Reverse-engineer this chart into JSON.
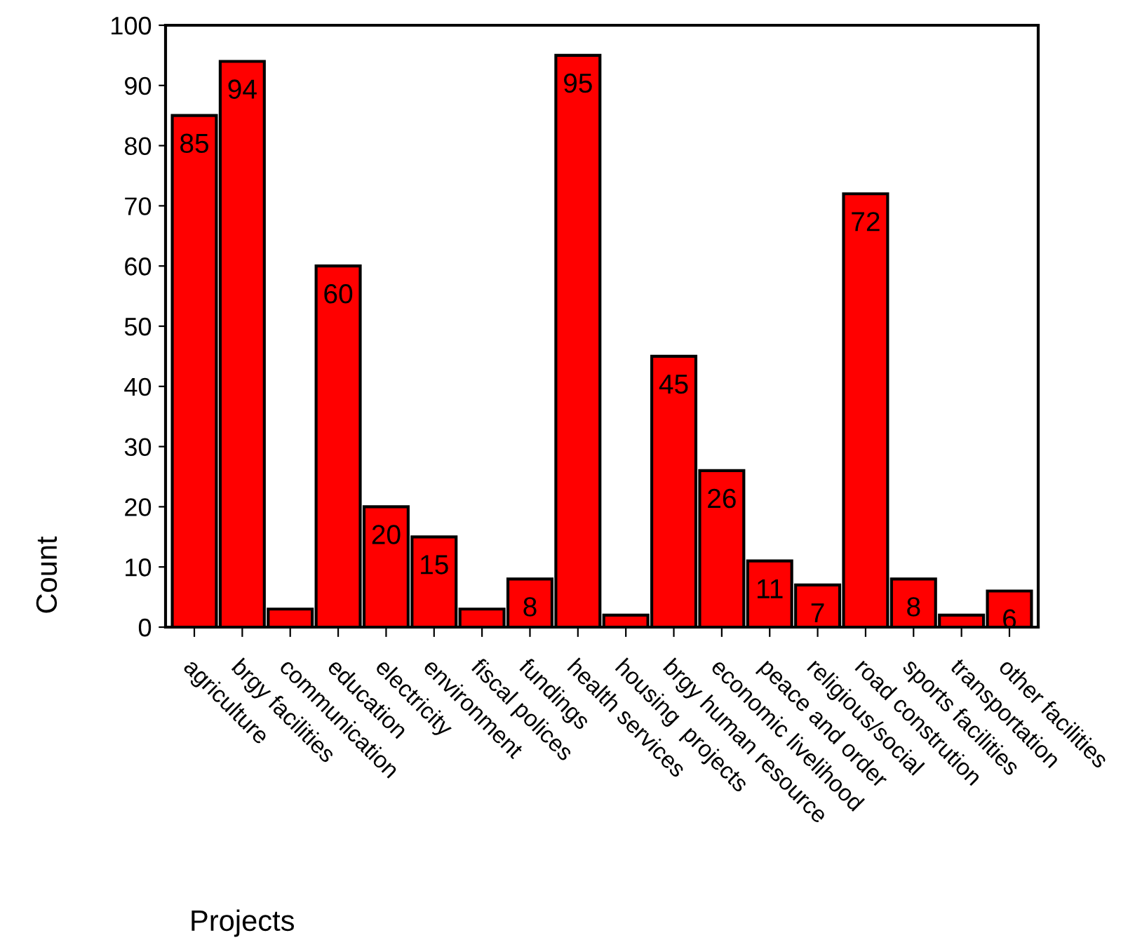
{
  "chart_data": {
    "type": "bar",
    "xlabel": "Projects",
    "ylabel": "Count",
    "categories": [
      "agriculture",
      "brgy facilities",
      "communication",
      "education",
      "electricity",
      "environment",
      "fiscal polices",
      "fundings",
      "health services",
      "housing  projects",
      "brgy human resource",
      "economic livelihood",
      "peace and order",
      "religious/social",
      "road constrution",
      "sports facilities",
      "transportation",
      "other facilities"
    ],
    "values": [
      85,
      94,
      3,
      60,
      20,
      15,
      3,
      8,
      95,
      2,
      45,
      26,
      11,
      7,
      72,
      8,
      2,
      6
    ],
    "value_labels": [
      "85",
      "94",
      null,
      "60",
      "20",
      "15",
      null,
      "8",
      "95",
      null,
      "45",
      "26",
      "11",
      "7",
      "72",
      "8",
      null,
      "6"
    ],
    "color": "#ff0000",
    "ylim": [
      0,
      100
    ],
    "yticks": [
      0,
      10,
      20,
      30,
      40,
      50,
      60,
      70,
      80,
      90,
      100
    ],
    "grid": false,
    "legend": false
  }
}
